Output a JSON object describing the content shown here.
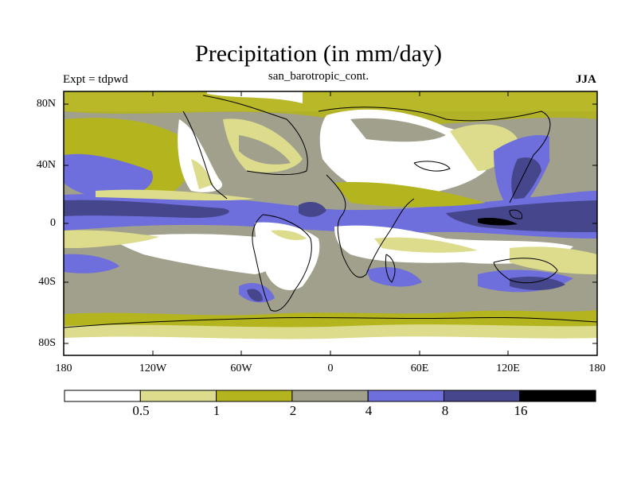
{
  "title": "Precipitation (in mm/day)",
  "subtitle_left": "Expt = tdpwd",
  "subtitle_center": "san_barotropic_cont.",
  "subtitle_right": "JJA",
  "y_axis_labels": [
    "80N",
    "40N",
    "0",
    "40S",
    "80S"
  ],
  "x_axis_labels": [
    "180",
    "120W",
    "60W",
    "0",
    "60E",
    "120E",
    "180"
  ],
  "colorbar": {
    "colors": [
      "#ffffff",
      "#dcdc8c",
      "#b4b41e",
      "#a0a08c",
      "#6e6edc",
      "#46468c",
      "#000000"
    ],
    "labels": [
      "0.5",
      "1",
      "2",
      "4",
      "8",
      "16"
    ]
  }
}
